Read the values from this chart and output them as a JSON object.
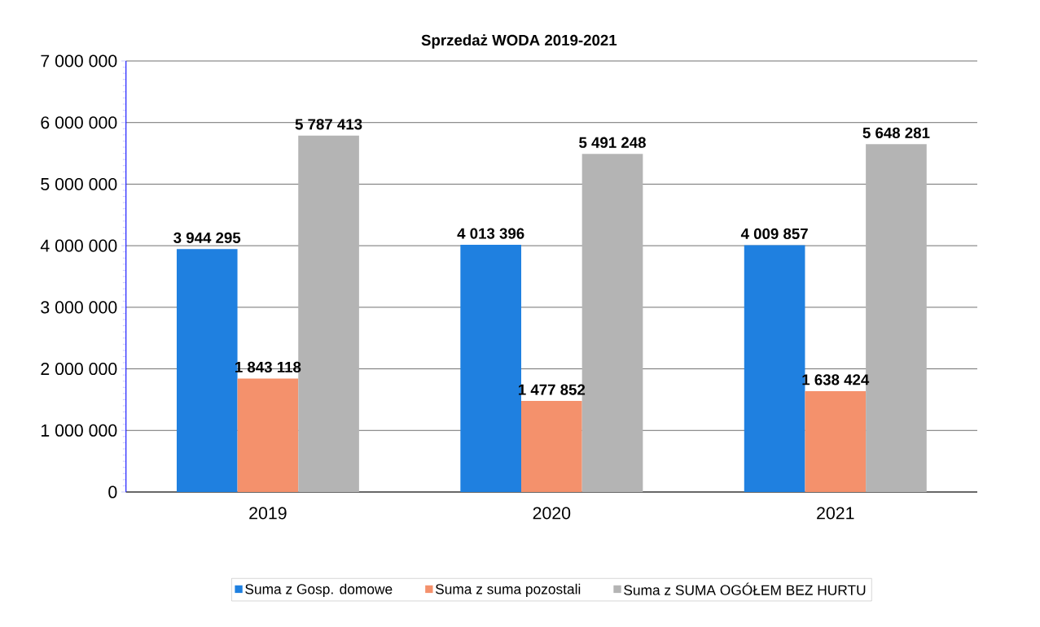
{
  "chart_data": {
    "type": "bar",
    "title": "Sprzedaż WODA 2019-2021",
    "categories": [
      "2019",
      "2020",
      "2021"
    ],
    "series": [
      {
        "name": "Suma z Gosp. domowe",
        "color": "#1f80e0",
        "values": [
          3944295,
          4013396,
          4009857
        ],
        "value_labels": [
          "3 944 295",
          "4 013 396",
          "4 009 857"
        ]
      },
      {
        "name": "Suma z suma pozostali",
        "color": "#f4916c",
        "values": [
          1843118,
          1477852,
          1638424
        ],
        "value_labels": [
          "1 843 118",
          "1 477 852",
          "1 638 424"
        ]
      },
      {
        "name": "Suma z SUMA OGÓŁEM BEZ HURTU",
        "color": "#b4b4b4",
        "values": [
          5787413,
          5491248,
          5648281
        ],
        "value_labels": [
          "5 787 413",
          "5 491 248",
          "5 648 281"
        ]
      }
    ],
    "ylim": [
      0,
      7000000
    ],
    "yticks": [
      {
        "value": 0,
        "label": "0"
      },
      {
        "value": 1000000,
        "label": "1 000 000"
      },
      {
        "value": 2000000,
        "label": "2 000 000"
      },
      {
        "value": 3000000,
        "label": "3 000 000"
      },
      {
        "value": 4000000,
        "label": "4 000 000"
      },
      {
        "value": 5000000,
        "label": "5 000 000"
      },
      {
        "value": 6000000,
        "label": "6 000 000"
      },
      {
        "value": 7000000,
        "label": "7 000 000"
      }
    ],
    "grid": "y",
    "legend": "bottom"
  }
}
